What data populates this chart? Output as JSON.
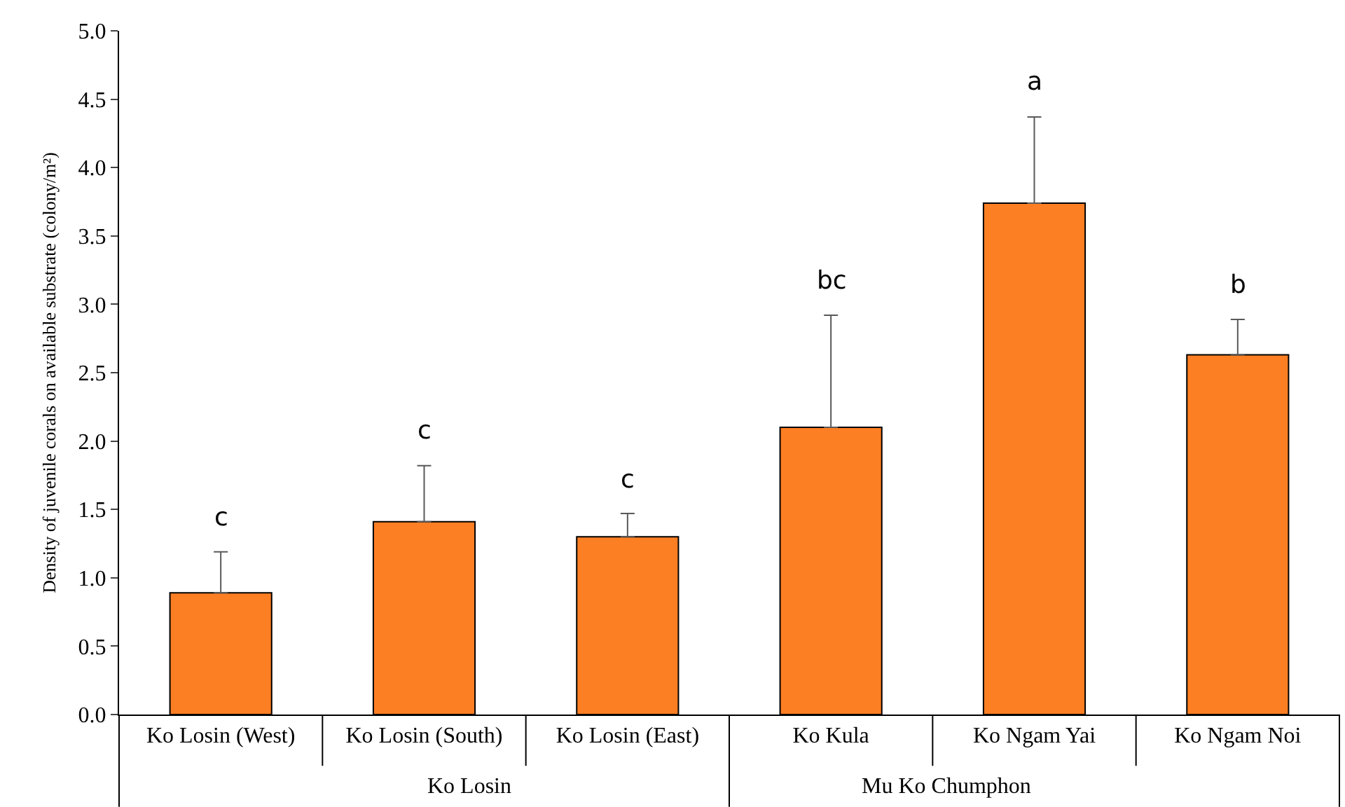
{
  "chart_data": {
    "type": "bar",
    "ylabel": "Density of juvenile corals on available substrate (colony/m²)",
    "categories": [
      "Ko Losin (West)",
      "Ko Losin (South)",
      "Ko Losin (East)",
      "Ko Kula",
      "Ko Ngam Yai",
      "Ko Ngam Noi"
    ],
    "values": [
      0.89,
      1.41,
      1.3,
      2.1,
      3.74,
      2.63
    ],
    "errors": [
      [
        0.89,
        1.19
      ],
      [
        1.41,
        1.82
      ],
      [
        1.3,
        1.47
      ],
      [
        2.1,
        2.92
      ],
      [
        3.74,
        4.37
      ],
      [
        2.63,
        2.89
      ]
    ],
    "color": "#fd7f23",
    "ylim": [
      0,
      5
    ],
    "yticks": [
      {
        "value": 0,
        "label": "0.0"
      },
      {
        "value": 0.5,
        "label": "0.5"
      },
      {
        "value": 1,
        "label": "1.0"
      },
      {
        "value": 1.5,
        "label": "1.5"
      },
      {
        "value": 2,
        "label": "2.0"
      },
      {
        "value": 2.5,
        "label": "2.5"
      },
      {
        "value": 3,
        "label": "3.0"
      },
      {
        "value": 3.5,
        "label": "3.5"
      },
      {
        "value": 4,
        "label": "4.0"
      },
      {
        "value": 4.5,
        "label": "4.5"
      },
      {
        "value": 5,
        "label": "5.0"
      }
    ],
    "grid": false,
    "annotations": [
      {
        "text": "c",
        "x": "Ko Losin (West)",
        "y": 1.19
      },
      {
        "text": "c",
        "x": "Ko Losin (South)",
        "y": 1.82
      },
      {
        "text": "c",
        "x": "Ko Losin (East)",
        "y": 1.47
      },
      {
        "text": "bc",
        "x": "Ko Kula",
        "y": 2.92
      },
      {
        "text": "a",
        "x": "Ko Ngam Yai",
        "y": 4.37
      },
      {
        "text": "b",
        "x": "Ko Ngam Noi",
        "y": 2.89
      },
      "Ko Losin",
      "Mu Ko Chumphon"
    ]
  }
}
